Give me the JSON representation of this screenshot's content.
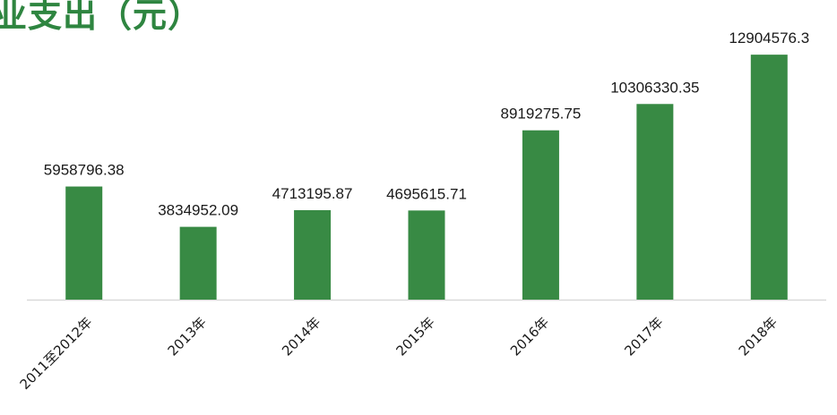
{
  "chart_data": {
    "type": "bar",
    "title": "业支出（元）",
    "categories": [
      "2011至2012年",
      "2013年",
      "2014年",
      "2015年",
      "2016年",
      "2017年",
      "2018年"
    ],
    "values": [
      5958796.38,
      3834952.09,
      4713195.87,
      4695615.71,
      8919275.75,
      10306330.35,
      12904576.3
    ],
    "value_labels": [
      "5958796.38",
      "3834952.09",
      "4713195.87",
      "4695615.71",
      "8919275.75",
      "10306330.35",
      "12904576.3"
    ],
    "ylim": [
      0,
      13900000
    ],
    "grid": false,
    "legend": "none",
    "bar_color": "#388a44",
    "axis_color": "#d9d9d9"
  }
}
